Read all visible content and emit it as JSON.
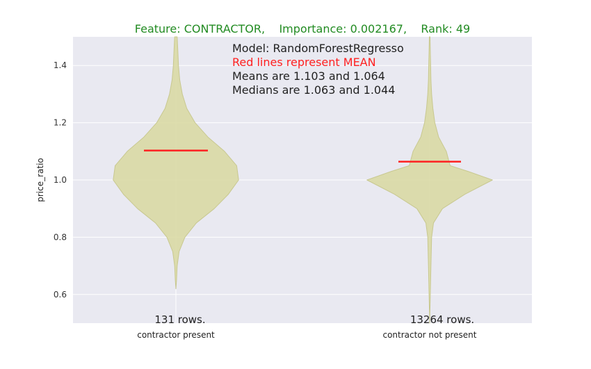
{
  "chart_data": {
    "type": "violin",
    "title": "Feature: CONTRACTOR,    Importance: 0.002167,    Rank: 49",
    "ylabel": "price_ratio",
    "ylim": [
      0.5,
      1.5
    ],
    "yticks": [
      0.6,
      0.8,
      1.0,
      1.2,
      1.4
    ],
    "ytick_labels": [
      "0.6",
      "0.8",
      "1.0",
      "1.2",
      "1.4"
    ],
    "grid": true,
    "annotations": [
      "Model: RandomForestRegresso",
      "Red lines represent MEAN",
      "Means are 1.103 and 1.064",
      "Medians are 1.063 and 1.044"
    ],
    "colors": {
      "background": "#e9e9f1",
      "violin_fill": "#d8d8a0",
      "violin_edge": "#c8c890",
      "mean_line": "#ff2020",
      "title": "#228b22",
      "annotation_highlight": "#ff2020"
    },
    "series": [
      {
        "category": "contractor present",
        "rows_label": "131 rows.",
        "mean": 1.103,
        "median": 1.063,
        "min": 0.62,
        "max": 1.5,
        "density_width": [
          [
            0.62,
            0.0
          ],
          [
            0.65,
            0.01
          ],
          [
            0.7,
            0.02
          ],
          [
            0.75,
            0.05
          ],
          [
            0.8,
            0.14
          ],
          [
            0.85,
            0.32
          ],
          [
            0.9,
            0.6
          ],
          [
            0.95,
            0.82
          ],
          [
            1.0,
            0.98
          ],
          [
            1.05,
            0.95
          ],
          [
            1.1,
            0.76
          ],
          [
            1.15,
            0.5
          ],
          [
            1.2,
            0.3
          ],
          [
            1.25,
            0.17
          ],
          [
            1.3,
            0.1
          ],
          [
            1.35,
            0.06
          ],
          [
            1.4,
            0.04
          ],
          [
            1.45,
            0.03
          ],
          [
            1.5,
            0.02
          ]
        ]
      },
      {
        "category": "contractor not present",
        "rows_label": "13264 rows.",
        "mean": 1.064,
        "median": 1.044,
        "min": 0.5,
        "max": 1.5,
        "density_width": [
          [
            0.5,
            0.0
          ],
          [
            0.6,
            0.01
          ],
          [
            0.7,
            0.02
          ],
          [
            0.8,
            0.03
          ],
          [
            0.85,
            0.06
          ],
          [
            0.9,
            0.2
          ],
          [
            0.95,
            0.55
          ],
          [
            1.0,
            0.98
          ],
          [
            1.03,
            0.6
          ],
          [
            1.05,
            0.32
          ],
          [
            1.1,
            0.26
          ],
          [
            1.15,
            0.14
          ],
          [
            1.2,
            0.08
          ],
          [
            1.25,
            0.05
          ],
          [
            1.3,
            0.03
          ],
          [
            1.35,
            0.02
          ],
          [
            1.4,
            0.015
          ],
          [
            1.45,
            0.01
          ],
          [
            1.5,
            0.005
          ]
        ]
      }
    ]
  }
}
